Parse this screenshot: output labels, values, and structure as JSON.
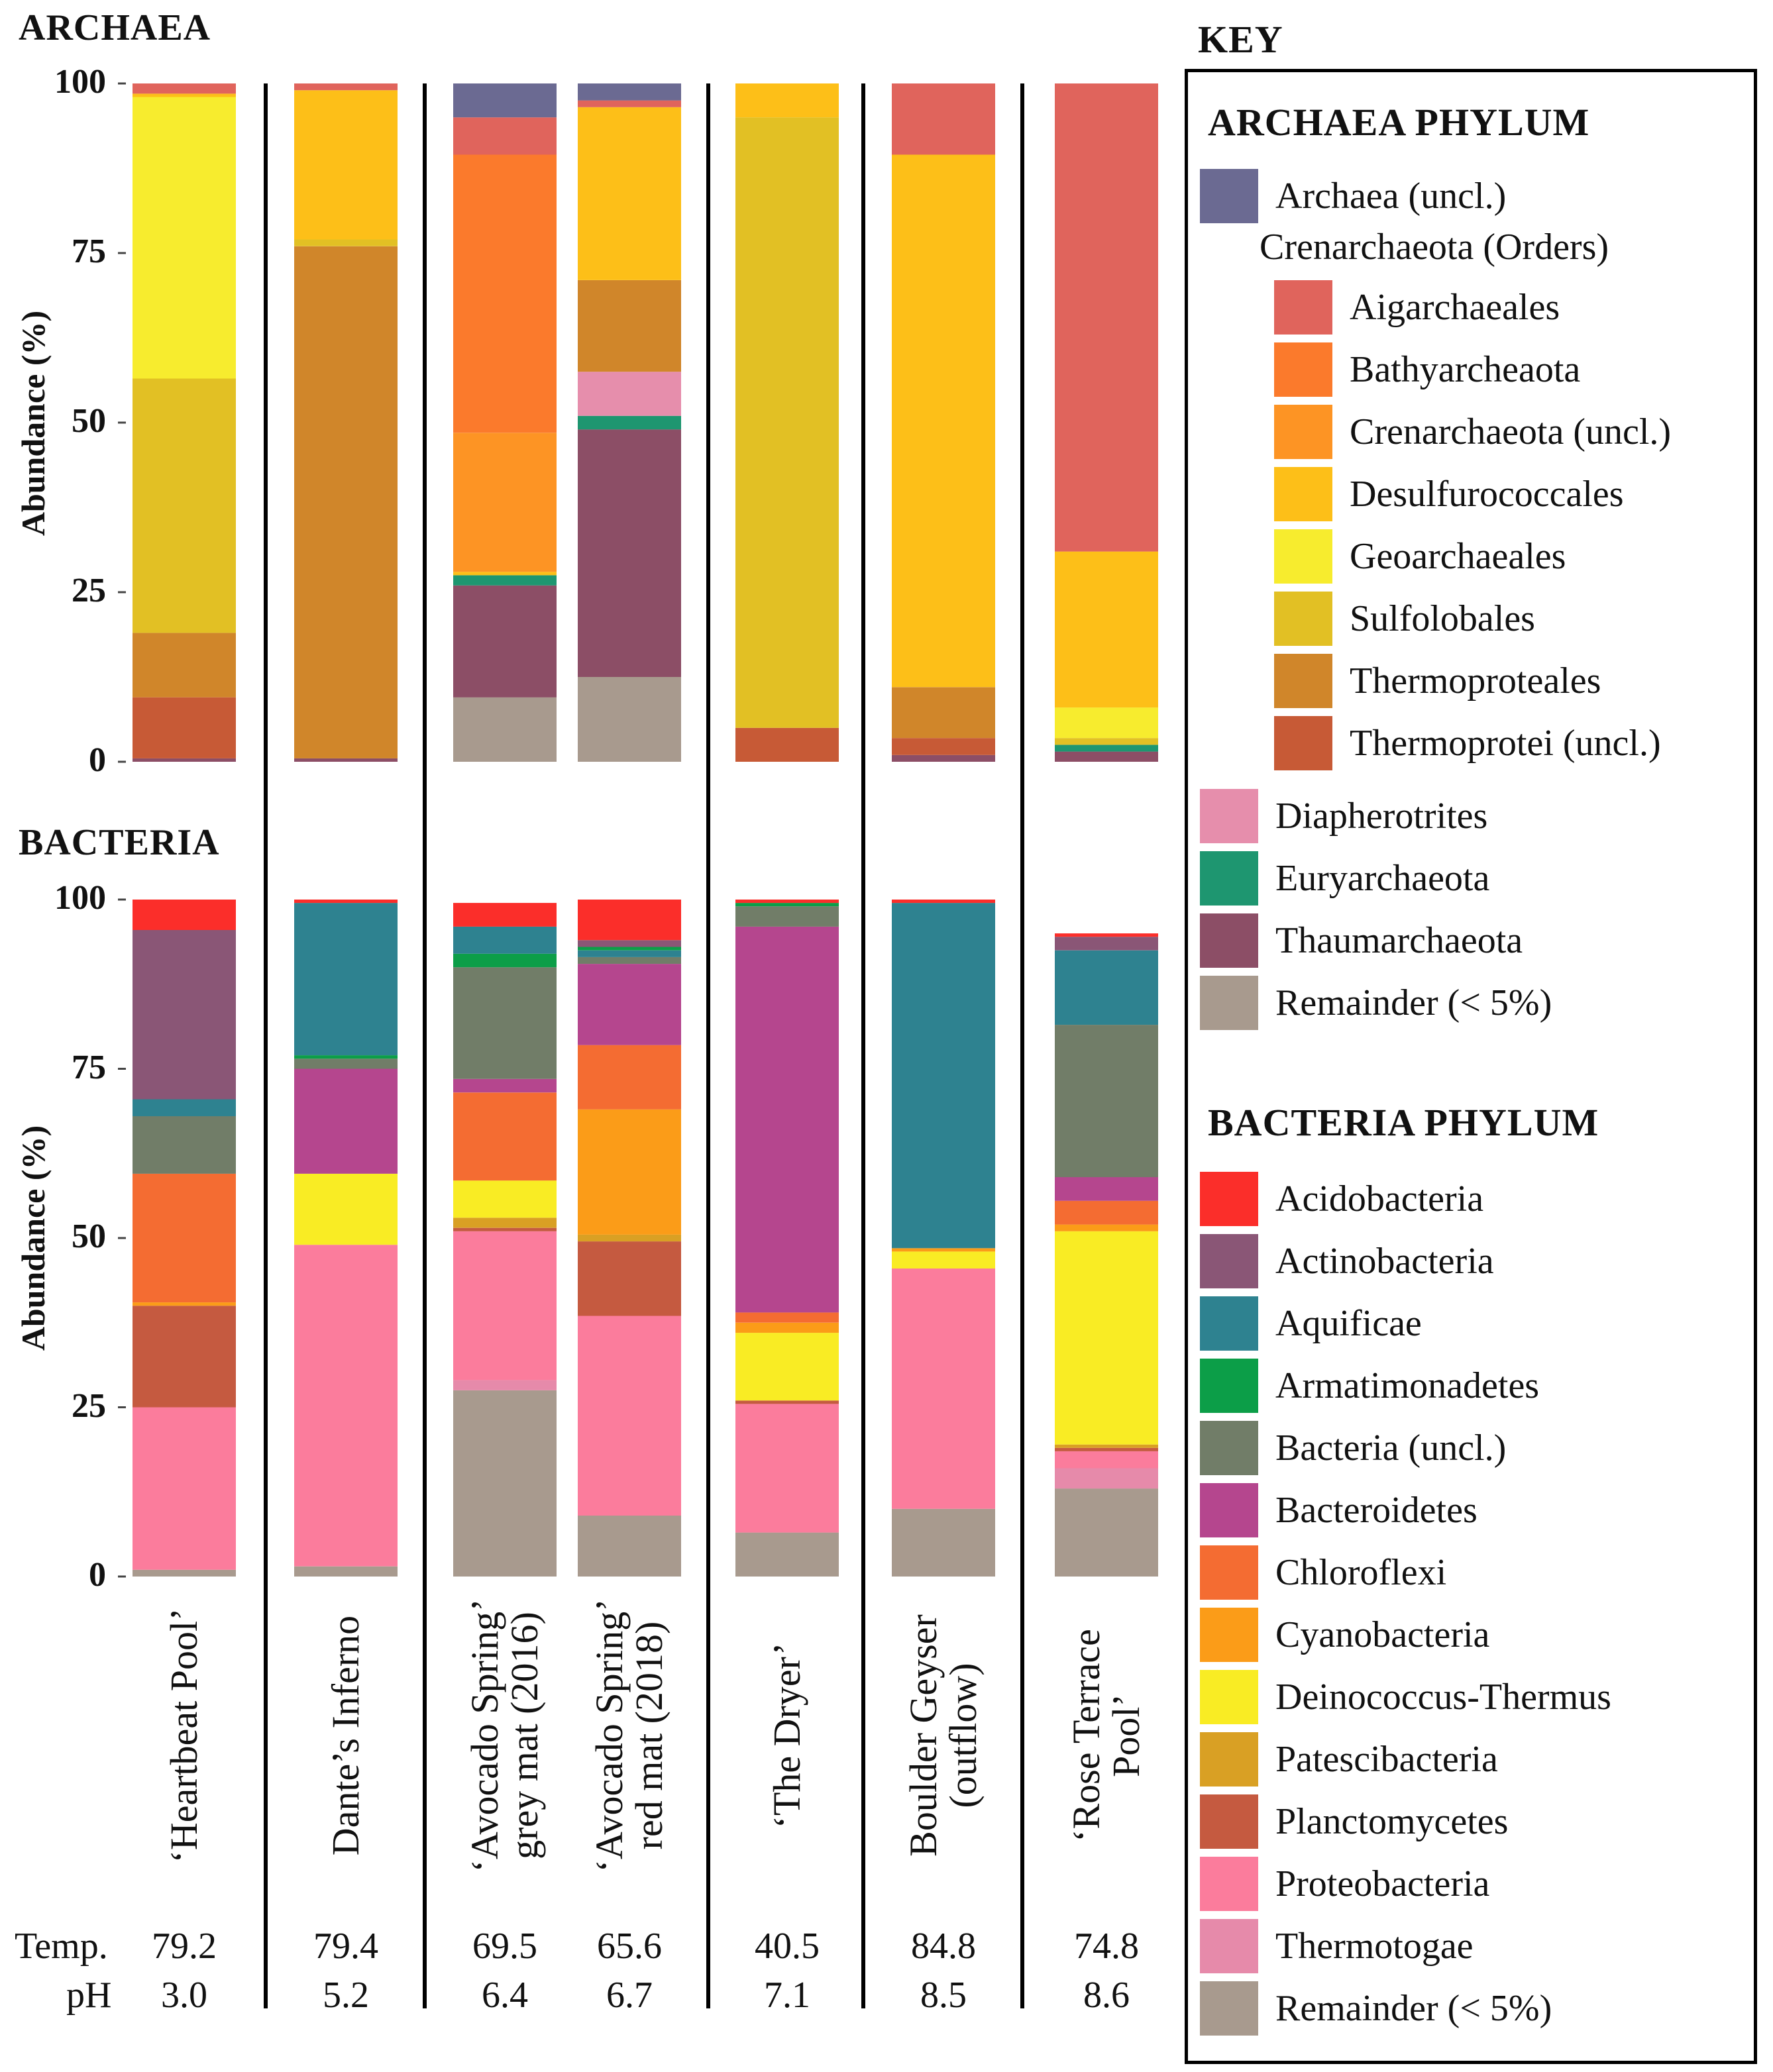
{
  "labels": {
    "archaea_title": "ARCHAEA",
    "bacteria_title": "BACTERIA",
    "y_axis_label": "Abundance (%)",
    "ticks": [
      "100",
      "75",
      "50",
      "25",
      "0"
    ],
    "temp_label": "Temp.",
    "ph_label": "pH"
  },
  "sites": [
    {
      "line1": "‘Heartbeat Pool’",
      "line2": "",
      "temp": "79.2",
      "ph": "3.0"
    },
    {
      "line1": "Dante’s Inferno",
      "line2": "",
      "temp": "79.4",
      "ph": "5.2"
    },
    {
      "line1": "‘Avocado Spring’",
      "line2": "grey mat (2016)",
      "temp": "69.5",
      "ph": "6.4"
    },
    {
      "line1": "‘Avocado Spring’",
      "line2": "red mat (2018)",
      "temp": "65.6",
      "ph": "6.7"
    },
    {
      "line1": "‘The Dryer’",
      "line2": "",
      "temp": "40.5",
      "ph": "7.1"
    },
    {
      "line1": "Boulder Geyser",
      "line2": "(outflow)",
      "temp": "84.8",
      "ph": "8.5"
    },
    {
      "line1": "‘Rose Terrace",
      "line2": "Pool’",
      "temp": "74.8",
      "ph": "8.6"
    }
  ],
  "key": {
    "title": "KEY",
    "archaea_header": "ARCHAEA PHYLUM",
    "crenarchaeota_header": "Crenarchaeota (Orders)",
    "bacteria_header": "BACTERIA PHYLUM"
  },
  "colors": {
    "Archaea (uncl.)": "#6b6a92",
    "Aigarchaeales": "#e0645c",
    "Bathyarcheaota": "#fb7a2c",
    "Crenarchaeota (uncl.)": "#fd9424",
    "Desulfurococcales": "#fdbf18",
    "Geoarchaeales": "#f7ec2e",
    "Sulfolobales": "#e2c024",
    "Thermoproteales": "#d0862a",
    "Thermoprotei (uncl.)": "#c75a36",
    "Diapherotrites": "#e68eac",
    "Euryarchaeota": "#1e9670",
    "Thaumarchaeota": "#8c4e66",
    "Remainder (< 5%)": "#a89a8e",
    "Acidobacteria": "#fb2e2a",
    "Actinobacteria": "#8a5676",
    "Aquificae": "#2e8290",
    "Armatimonadetes": "#0c9e48",
    "Bacteria (uncl.)": "#717d68",
    "Bacteroidetes": "#b5468e",
    "Chloroflexi": "#f46c32",
    "Cyanobacteria": "#fb9c18",
    "Deinococcus-Thermus": "#f9ec24",
    "Patescibacteria": "#d9a024",
    "Planctomycetes": "#c55a40",
    "Proteobacteria": "#fb7c9c",
    "Thermotogae": "#e68aaa"
  },
  "key_archaea_items": [
    "Archaea (uncl.)"
  ],
  "key_cren_items": [
    "Aigarchaeales",
    "Bathyarcheaota",
    "Crenarchaeota (uncl.)",
    "Desulfurococcales",
    "Geoarchaeales",
    "Sulfolobales",
    "Thermoproteales",
    "Thermoprotei (uncl.)"
  ],
  "key_archaea_tail": [
    "Diapherotrites",
    "Euryarchaeota",
    "Thaumarchaeota",
    "Remainder (< 5%)"
  ],
  "key_bacteria_items": [
    "Acidobacteria",
    "Actinobacteria",
    "Aquificae",
    "Armatimonadetes",
    "Bacteria (uncl.)",
    "Bacteroidetes",
    "Chloroflexi",
    "Cyanobacteria",
    "Deinococcus-Thermus",
    "Patescibacteria",
    "Planctomycetes",
    "Proteobacteria",
    "Thermotogae",
    "Remainder (< 5%)"
  ],
  "chart_data": [
    {
      "type": "bar",
      "stacked": true,
      "title": "ARCHAEA",
      "ylabel": "Abundance (%)",
      "ylim": [
        0,
        100
      ],
      "categories": [
        "‘Heartbeat Pool’",
        "Dante’s Inferno",
        "‘Avocado Spring’ grey mat (2016)",
        "‘Avocado Spring’ red mat (2018)",
        "‘The Dryer’",
        "Boulder Geyser (outflow)",
        "‘Rose Terrace Pool’"
      ],
      "stacks": [
        [
          [
            "Thaumarchaeota",
            0.5
          ],
          [
            "Thermoprotei (uncl.)",
            9
          ],
          [
            "Thermoproteales",
            9.5
          ],
          [
            "Sulfolobales",
            37.5
          ],
          [
            "Geoarchaeales",
            41.5
          ],
          [
            "Desulfurococcales",
            0.5
          ],
          [
            "Aigarchaeales",
            1.5
          ]
        ],
        [
          [
            "Thaumarchaeota",
            0.5
          ],
          [
            "Thermoproteales",
            75.5
          ],
          [
            "Sulfolobales",
            1
          ],
          [
            "Desulfurococcales",
            22
          ],
          [
            "Aigarchaeales",
            1
          ]
        ],
        [
          [
            "Remainder (< 5%)",
            9.5
          ],
          [
            "Thaumarchaeota",
            16.5
          ],
          [
            "Euryarchaeota",
            1.5
          ],
          [
            "Desulfurococcales",
            0.5
          ],
          [
            "Crenarchaeota (uncl.)",
            20.5
          ],
          [
            "Bathyarcheaota",
            41
          ],
          [
            "Aigarchaeales",
            5.5
          ],
          [
            "Archaea (uncl.)",
            5
          ]
        ],
        [
          [
            "Remainder (< 5%)",
            12.5
          ],
          [
            "Thaumarchaeota",
            36.5
          ],
          [
            "Euryarchaeota",
            2
          ],
          [
            "Diapherotrites",
            6.5
          ],
          [
            "Thermoproteales",
            13.5
          ],
          [
            "Desulfurococcales",
            25.5
          ],
          [
            "Aigarchaeales",
            1
          ],
          [
            "Archaea (uncl.)",
            2.5
          ]
        ],
        [
          [
            "Thermoprotei (uncl.)",
            5
          ],
          [
            "Sulfolobales",
            90
          ],
          [
            "Desulfurococcales",
            5
          ]
        ],
        [
          [
            "Thaumarchaeota",
            1
          ],
          [
            "Thermoprotei (uncl.)",
            2.5
          ],
          [
            "Thermoproteales",
            7.5
          ],
          [
            "Desulfurococcales",
            78.5
          ],
          [
            "Aigarchaeales",
            10.5
          ]
        ],
        [
          [
            "Thaumarchaeota",
            1.5
          ],
          [
            "Euryarchaeota",
            1
          ],
          [
            "Sulfolobales",
            1
          ],
          [
            "Geoarchaeales",
            4.5
          ],
          [
            "Desulfurococcales",
            23
          ],
          [
            "Aigarchaeales",
            69
          ]
        ]
      ]
    },
    {
      "type": "bar",
      "stacked": true,
      "title": "BACTERIA",
      "ylabel": "Abundance (%)",
      "ylim": [
        0,
        100
      ],
      "categories": [
        "‘Heartbeat Pool’",
        "Dante’s Inferno",
        "‘Avocado Spring’ grey mat (2016)",
        "‘Avocado Spring’ red mat (2018)",
        "‘The Dryer’",
        "Boulder Geyser (outflow)",
        "‘Rose Terrace Pool’"
      ],
      "stacks": [
        [
          [
            "Remainder (< 5%)",
            1
          ],
          [
            "Proteobacteria",
            24
          ],
          [
            "Planctomycetes",
            15
          ],
          [
            "Cyanobacteria",
            0.5
          ],
          [
            "Chloroflexi",
            19
          ],
          [
            "Bacteria (uncl.)",
            8.5
          ],
          [
            "Aquificae",
            2.5
          ],
          [
            "Actinobacteria",
            25
          ],
          [
            "Acidobacteria",
            4.5
          ]
        ],
        [
          [
            "Remainder (< 5%)",
            1.5
          ],
          [
            "Proteobacteria",
            47.5
          ],
          [
            "Deinococcus-Thermus",
            10.5
          ],
          [
            "Bacteroidetes",
            15.5
          ],
          [
            "Bacteria (uncl.)",
            1.5
          ],
          [
            "Armatimonadetes",
            0.5
          ],
          [
            "Aquificae",
            22.5
          ],
          [
            "Acidobacteria",
            0.5
          ]
        ],
        [
          [
            "Remainder (< 5%)",
            27.5
          ],
          [
            "Thermotogae",
            1.5
          ],
          [
            "Proteobacteria",
            22
          ],
          [
            "Planctomycetes",
            0.5
          ],
          [
            "Patescibacteria",
            1.5
          ],
          [
            "Deinococcus-Thermus",
            5.5
          ],
          [
            "Chloroflexi",
            13
          ],
          [
            "Bacteroidetes",
            2
          ],
          [
            "Bacteria (uncl.)",
            16.5
          ],
          [
            "Armatimonadetes",
            2
          ],
          [
            "Aquificae",
            4
          ],
          [
            "Acidobacteria",
            3.5
          ]
        ],
        [
          [
            "Remainder (< 5%)",
            9
          ],
          [
            "Proteobacteria",
            29.5
          ],
          [
            "Planctomycetes",
            11
          ],
          [
            "Patescibacteria",
            1
          ],
          [
            "Cyanobacteria",
            18.5
          ],
          [
            "Chloroflexi",
            9.5
          ],
          [
            "Bacteroidetes",
            12
          ],
          [
            "Bacteria (uncl.)",
            1
          ],
          [
            "Aquificae",
            1
          ],
          [
            "Armatimonadetes",
            0.5
          ],
          [
            "Actinobacteria",
            1
          ],
          [
            "Acidobacteria",
            6
          ]
        ],
        [
          [
            "Remainder (< 5%)",
            6.5
          ],
          [
            "Proteobacteria",
            19
          ],
          [
            "Planctomycetes",
            0.5
          ],
          [
            "Deinococcus-Thermus",
            10
          ],
          [
            "Cyanobacteria",
            1.5
          ],
          [
            "Chloroflexi",
            1.5
          ],
          [
            "Bacteroidetes",
            57
          ],
          [
            "Bacteria (uncl.)",
            3
          ],
          [
            "Armatimonadetes",
            0.5
          ],
          [
            "Acidobacteria",
            0.5
          ]
        ],
        [
          [
            "Remainder (< 5%)",
            10
          ],
          [
            "Proteobacteria",
            35.5
          ],
          [
            "Deinococcus-Thermus",
            2.5
          ],
          [
            "Cyanobacteria",
            0.5
          ],
          [
            "Aquificae",
            51
          ],
          [
            "Acidobacteria",
            0.5
          ]
        ],
        [
          [
            "Remainder (< 5%)",
            13
          ],
          [
            "Thermotogae",
            3
          ],
          [
            "Proteobacteria",
            2.5
          ],
          [
            "Planctomycetes",
            0.5
          ],
          [
            "Patescibacteria",
            0.5
          ],
          [
            "Deinococcus-Thermus",
            31.5
          ],
          [
            "Cyanobacteria",
            1
          ],
          [
            "Chloroflexi",
            3.5
          ],
          [
            "Bacteroidetes",
            3.5
          ],
          [
            "Bacteria (uncl.)",
            22.5
          ],
          [
            "Aquificae",
            11
          ],
          [
            "Actinobacteria",
            2
          ],
          [
            "Acidobacteria",
            0.5
          ]
        ]
      ]
    }
  ]
}
